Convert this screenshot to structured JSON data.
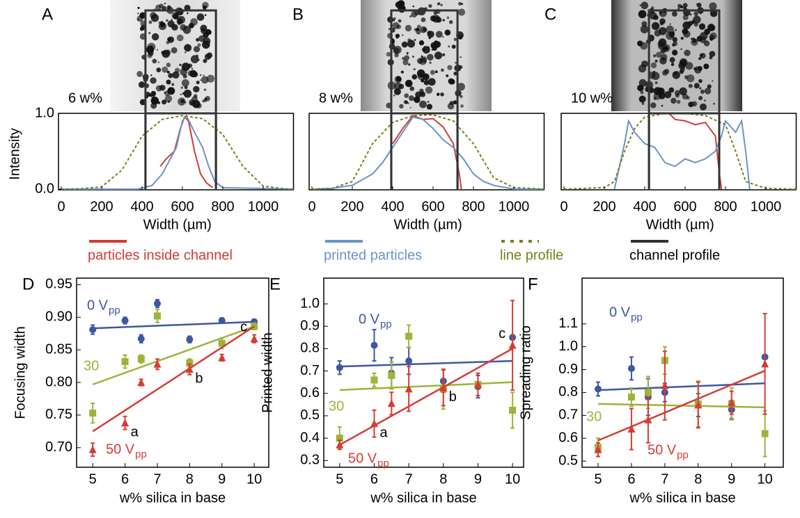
{
  "chart_data": [
    {
      "type": "line",
      "label": "A",
      "annotation": "6 w%",
      "xlabel": "Width (µm)",
      "ylabel": "Intensity",
      "xlim": [
        0,
        1150
      ],
      "ylim": [
        0,
        1
      ],
      "xticks": [
        0,
        200,
        400,
        600,
        800,
        1000
      ],
      "yticks": [
        {
          "value": 0,
          "label": "0.0"
        },
        {
          "value": 1,
          "label": "1.0"
        }
      ],
      "series": [
        {
          "name": "particles inside channel",
          "color": "#d13b34",
          "x": [
            490,
            520,
            560,
            590,
            610,
            630,
            660,
            690,
            720,
            750
          ],
          "values": [
            0.3,
            0.4,
            0.5,
            0.8,
            0.95,
            0.9,
            0.5,
            0.2,
            0.08,
            0.02
          ]
        },
        {
          "name": "printed particles",
          "color": "#6b93c8",
          "x": [
            0,
            380,
            450,
            500,
            530,
            570,
            600,
            620,
            660,
            700,
            730,
            760,
            800,
            1150
          ],
          "values": [
            0,
            0,
            0.05,
            0.2,
            0.35,
            0.55,
            0.9,
            0.97,
            0.75,
            0.55,
            0.3,
            0.1,
            0.02,
            0
          ]
        },
        {
          "name": "line profile",
          "color": "#7a7f1a",
          "dash": true,
          "x": [
            0,
            100,
            200,
            300,
            400,
            500,
            600,
            700,
            800,
            900,
            1000,
            1100,
            1150
          ],
          "values": [
            0,
            0.005,
            0.03,
            0.25,
            0.7,
            0.92,
            0.97,
            0.93,
            0.72,
            0.3,
            0.04,
            0.005,
            0
          ]
        },
        {
          "name": "channel profile",
          "color": "#333333",
          "x": [
            417,
            417,
            766,
            766
          ],
          "values": [
            0,
            1,
            1,
            0
          ]
        }
      ]
    },
    {
      "type": "line",
      "label": "B",
      "annotation": "8 w%",
      "xlabel": "Width (µm)",
      "xlim": [
        0,
        1150
      ],
      "ylim": [
        0,
        1
      ],
      "xticks": [
        0,
        200,
        400,
        600,
        800,
        1000
      ],
      "series": [
        {
          "color": "#d13b34",
          "x": [
            400,
            450,
            500,
            550,
            600,
            650,
            700,
            730,
            740
          ],
          "values": [
            0.6,
            0.8,
            0.97,
            0.92,
            0.93,
            0.82,
            0.6,
            0.2,
            0
          ]
        },
        {
          "color": "#6b93c8",
          "x": [
            0,
            100,
            200,
            300,
            350,
            400,
            450,
            500,
            550,
            600,
            650,
            700,
            750,
            800,
            850,
            900,
            1000,
            1150
          ],
          "values": [
            0,
            0.01,
            0.05,
            0.2,
            0.35,
            0.55,
            0.75,
            0.95,
            0.92,
            0.8,
            0.65,
            0.55,
            0.4,
            0.2,
            0.1,
            0.05,
            0,
            0
          ]
        },
        {
          "color": "#7a7f1a",
          "dash": true,
          "x": [
            0,
            100,
            200,
            300,
            400,
            500,
            600,
            700,
            800,
            900,
            1000,
            1150
          ],
          "values": [
            0,
            0.01,
            0.1,
            0.6,
            0.88,
            0.97,
            0.98,
            0.9,
            0.6,
            0.15,
            0.02,
            0
          ]
        },
        {
          "color": "#333333",
          "x": [
            393,
            393,
            721,
            721
          ],
          "values": [
            0,
            1,
            1,
            0
          ]
        }
      ]
    },
    {
      "type": "line",
      "label": "C",
      "annotation": "10 w%",
      "xlabel": "Width (µm)",
      "xlim": [
        0,
        1150
      ],
      "ylim": [
        0,
        1
      ],
      "xticks": [
        0,
        200,
        400,
        600,
        800,
        1000
      ],
      "series": [
        {
          "color": "#d13b34",
          "x": [
            520,
            550,
            600,
            650,
            700,
            750,
            770,
            780
          ],
          "values": [
            1.0,
            0.92,
            0.9,
            0.85,
            0.88,
            0.7,
            0.2,
            0
          ]
        },
        {
          "color": "#6b93c8",
          "x": [
            250,
            300,
            320,
            350,
            400,
            450,
            500,
            550,
            600,
            650,
            700,
            750,
            780,
            800,
            850,
            880,
            900,
            920
          ],
          "values": [
            0,
            0.6,
            0.9,
            0.75,
            0.6,
            0.55,
            0.35,
            0.3,
            0.4,
            0.35,
            0.4,
            0.5,
            0.7,
            0.9,
            0.75,
            0.9,
            0.5,
            0
          ]
        },
        {
          "color": "#7a7f1a",
          "dash": true,
          "x": [
            0,
            200,
            250,
            300,
            350,
            400,
            500,
            600,
            700,
            800,
            850,
            900,
            1000,
            1150
          ],
          "values": [
            0,
            0.02,
            0.1,
            0.5,
            0.8,
            0.95,
            1.0,
            1.0,
            0.97,
            0.85,
            0.5,
            0.1,
            0.01,
            0
          ]
        },
        {
          "color": "#333333",
          "x": [
            421,
            421,
            769,
            769
          ],
          "values": [
            0,
            1,
            1,
            0
          ]
        }
      ]
    },
    {
      "type": "scatter",
      "label": "D",
      "xlabel": "w% silica in base",
      "ylabel": "Focusing width",
      "xlim": [
        4.5,
        10.45
      ],
      "ylim": [
        0.67,
        0.96
      ],
      "xticks": [
        5,
        6,
        7,
        8,
        9,
        10
      ],
      "yticks": [
        {
          "value": 0.7,
          "label": "0.70"
        },
        0.75,
        {
          "value": 0.8,
          "label": "0.80"
        },
        0.85,
        {
          "value": 0.9,
          "label": "0.90"
        },
        0.95
      ],
      "fit_x": [
        5,
        10
      ],
      "series": [
        {
          "name": "0 V",
          "name_sub": "pp",
          "color": "#3e57a1",
          "marker": "circle",
          "x": [
            5,
            6,
            6.5,
            7,
            8,
            9,
            10
          ],
          "values": [
            0.881,
            0.895,
            0.867,
            0.921,
            0.866,
            0.895,
            0.893
          ],
          "errors": [
            0.007,
            0.005,
            0.006,
            0.006,
            0.005,
            0.004,
            0.004
          ],
          "fit": [
            0.883,
            0.893
          ]
        },
        {
          "name": "30",
          "color": "#9cb43a",
          "marker": "square",
          "x": [
            5,
            6,
            6.5,
            7,
            8,
            9,
            10
          ],
          "values": [
            0.753,
            0.832,
            0.836,
            0.902,
            0.83,
            0.86,
            0.886
          ],
          "errors": [
            0.015,
            0.01,
            0.006,
            0.01,
            0.006,
            0.008,
            0.005
          ],
          "fit": [
            0.797,
            0.886
          ]
        },
        {
          "name": "50 V",
          "name_sub": "pp",
          "color": "#d63c35",
          "marker": "triangle",
          "x": [
            5,
            6,
            6.5,
            7,
            8,
            9,
            10
          ],
          "values": [
            0.697,
            0.738,
            0.8,
            0.828,
            0.82,
            0.838,
            0.867
          ],
          "errors": [
            0.01,
            0.01,
            0.005,
            0.008,
            0.008,
            0.005,
            0.006
          ],
          "fit": [
            0.725,
            0.886
          ],
          "point_labels": [
            null,
            "a",
            null,
            null,
            "b",
            null,
            "c"
          ]
        }
      ]
    },
    {
      "type": "scatter",
      "label": "E",
      "xlabel": "w% silica in base",
      "ylabel": "Printed width",
      "xlim": [
        4.54,
        10.32
      ],
      "ylim": [
        0.27,
        1.115
      ],
      "xticks": [
        5,
        6,
        7,
        8,
        9,
        10
      ],
      "yticks": [
        0.3,
        0.4,
        0.5,
        0.6,
        0.7,
        0.8,
        0.9,
        {
          "value": 1,
          "label": "1.0"
        }
      ],
      "fit_x": [
        5,
        10
      ],
      "series": [
        {
          "name": "0 V",
          "name_sub": "pp",
          "color": "#3e57a1",
          "marker": "circle",
          "x": [
            5,
            6,
            6.5,
            7,
            8,
            9,
            10
          ],
          "values": [
            0.715,
            0.815,
            0.69,
            0.745,
            0.655,
            0.63,
            0.85
          ],
          "errors": [
            0.03,
            0.07,
            0.07,
            0.06,
            0.05,
            0.05,
            0.01
          ],
          "fit": [
            0.72,
            0.745
          ]
        },
        {
          "name": "30",
          "color": "#9cb43a",
          "marker": "square",
          "x": [
            5,
            6,
            6.5,
            7,
            8,
            9,
            10
          ],
          "values": [
            0.4,
            0.66,
            0.68,
            0.855,
            0.62,
            0.64,
            0.525
          ],
          "errors": [
            0.05,
            0.03,
            0.06,
            0.05,
            0.09,
            0.05,
            0.08
          ],
          "fit": [
            0.615,
            0.65
          ]
        },
        {
          "name": "50 V",
          "name_sub": "pp",
          "color": "#d63c35",
          "marker": "triangle",
          "x": [
            5,
            6,
            6.5,
            7,
            8,
            9,
            10
          ],
          "values": [
            0.37,
            0.465,
            0.555,
            0.62,
            0.625,
            0.64,
            0.815
          ],
          "errors": [
            0.02,
            0.06,
            0.05,
            0.1,
            0.08,
            0.05,
            0.2
          ],
          "fit": [
            0.37,
            0.8
          ],
          "point_labels": [
            null,
            "a",
            null,
            null,
            "b",
            null,
            "c"
          ]
        }
      ]
    },
    {
      "type": "scatter",
      "label": "F",
      "xlabel": "w% silica in base",
      "ylabel": "Spreading ratio",
      "xlim": [
        4.52,
        10.55
      ],
      "ylim": [
        0.473,
        1.3
      ],
      "xticks": [
        5,
        6,
        7,
        8,
        9,
        10
      ],
      "yticks": [
        0.5,
        0.6,
        0.7,
        0.8,
        0.9,
        {
          "value": 1,
          "label": "1.0"
        },
        1.1
      ],
      "fit_x": [
        5,
        10
      ],
      "series": [
        {
          "name": "0 V",
          "name_sub": "pp",
          "color": "#3e57a1",
          "marker": "circle",
          "x": [
            5,
            6,
            6.5,
            7,
            8,
            9,
            10
          ],
          "values": [
            0.815,
            0.905,
            0.78,
            0.8,
            0.745,
            0.725,
            0.955
          ],
          "errors": [
            0.03,
            0.05,
            0.08,
            0.04,
            0.05,
            0.04,
            0.01
          ],
          "fit": [
            0.81,
            0.84
          ]
        },
        {
          "name": "30",
          "color": "#9cb43a",
          "marker": "square",
          "x": [
            5,
            6,
            6.5,
            7,
            8,
            9,
            10
          ],
          "values": [
            0.56,
            0.78,
            0.8,
            0.94,
            0.75,
            0.75,
            0.62
          ],
          "errors": [
            0.04,
            0.04,
            0.07,
            0.06,
            0.1,
            0.07,
            0.1
          ],
          "fit": [
            0.75,
            0.735
          ]
        },
        {
          "name": "50 V",
          "name_sub": "pp",
          "color": "#d63c35",
          "marker": "triangle",
          "x": [
            5,
            6,
            6.5,
            7,
            8,
            9,
            10
          ],
          "values": [
            0.55,
            0.64,
            0.68,
            0.83,
            0.745,
            0.755,
            0.925
          ],
          "errors": [
            0.03,
            0.09,
            0.1,
            0.15,
            0.1,
            0.05,
            0.22
          ],
          "fit": [
            0.59,
            0.895
          ]
        }
      ]
    }
  ]
}
